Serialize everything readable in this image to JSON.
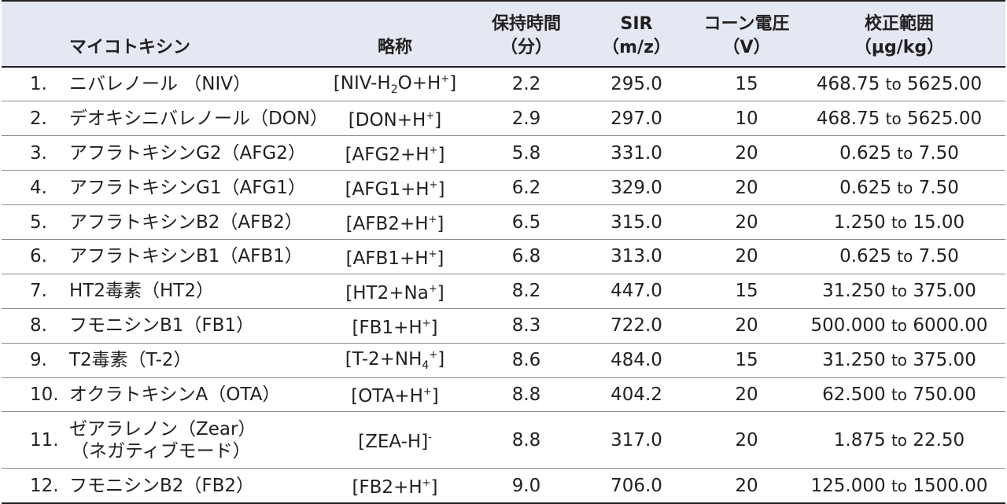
{
  "header": {
    "mycotoxin": "マイコトキシン",
    "abbr": "略称",
    "rt_line1": "保持時間",
    "rt_line2": "（分）",
    "sir_line1": "SIR",
    "sir_line2": "（m/z）",
    "cone_line1": "コーン電圧",
    "cone_line2": "（V）",
    "cal_line1": "校正範囲",
    "cal_line2": "（μg/kg）"
  },
  "rows": [
    {
      "no": "1.",
      "name": "ニバレノール （NIV）",
      "ion_pre": "[NIV-H",
      "ion_sub": "2",
      "ion_mid": "O+H",
      "ion_sup": "+",
      "ion_post": "]",
      "rt": "2.2",
      "sir": "295.0",
      "cone": "15",
      "cal_low": "468.75",
      "cal_to": "to",
      "cal_high": "5625.00"
    },
    {
      "no": "2.",
      "name": "デオキシニバレノール（DON）",
      "ion_pre": "[DON+H",
      "ion_sup": "+",
      "ion_post": "]",
      "rt": "2.9",
      "sir": "297.0",
      "cone": "10",
      "cal_low": "468.75",
      "cal_to": "to",
      "cal_high": "5625.00"
    },
    {
      "no": "3.",
      "name": "アフラトキシンG2（AFG2）",
      "ion_pre": "[AFG2+H",
      "ion_sup": "+",
      "ion_post": "]",
      "rt": "5.8",
      "sir": "331.0",
      "cone": "20",
      "cal_low": "0.625",
      "cal_to": "to",
      "cal_high": "7.50"
    },
    {
      "no": "4.",
      "name": "アフラトキシンG1（AFG1）",
      "ion_pre": "[AFG1+H",
      "ion_sup": "+",
      "ion_post": "]",
      "rt": "6.2",
      "sir": "329.0",
      "cone": "20",
      "cal_low": "0.625",
      "cal_to": "to",
      "cal_high": "7.50"
    },
    {
      "no": "5.",
      "name": "アフラトキシンB2（AFB2）",
      "ion_pre": "[AFB2+H",
      "ion_sup": "+",
      "ion_post": "]",
      "rt": "6.5",
      "sir": "315.0",
      "cone": "20",
      "cal_low": "1.250",
      "cal_to": "to",
      "cal_high": "15.00"
    },
    {
      "no": "6.",
      "name": "アフラトキシンB1（AFB1）",
      "ion_pre": "[AFB1+H",
      "ion_sup": "+",
      "ion_post": "]",
      "rt": "6.8",
      "sir": "313.0",
      "cone": "20",
      "cal_low": "0.625",
      "cal_to": "to",
      "cal_high": "7.50"
    },
    {
      "no": "7.",
      "name": "HT2毒素（HT2）",
      "ion_pre": "[HT2+Na",
      "ion_sup": "+",
      "ion_post": "]",
      "rt": "8.2",
      "sir": "447.0",
      "cone": "15",
      "cal_low": "31.250",
      "cal_to": "to",
      "cal_high": "375.00"
    },
    {
      "no": "8.",
      "name": "フモニシンB1（FB1）",
      "ion_pre": "[FB1+H",
      "ion_sup": "+",
      "ion_post": "]",
      "rt": "8.3",
      "sir": "722.0",
      "cone": "20",
      "cal_low": "500.000",
      "cal_to": "to",
      "cal_high": "6000.00"
    },
    {
      "no": "9.",
      "name": "T2毒素（T-2）",
      "ion_pre": "[T-2+NH",
      "ion_sub": "4",
      "ion_sup": "+",
      "ion_post": "]",
      "rt": "8.6",
      "sir": "484.0",
      "cone": "15",
      "cal_low": "31.250",
      "cal_to": "to",
      "cal_high": "375.00"
    },
    {
      "no": "10.",
      "name": "オクラトキシンA（OTA）",
      "ion_pre": "[OTA+H",
      "ion_sup": "+",
      "ion_post": "]",
      "rt": "8.8",
      "sir": "404.2",
      "cone": "20",
      "cal_low": "62.500",
      "cal_to": "to",
      "cal_high": "750.00"
    },
    {
      "no": "11.",
      "name": "ゼアラレノン（Zear）",
      "name2": "（ネガティブモード）",
      "ion_pre": "[ZEA-H]",
      "ion_sup": "-",
      "rt": "8.8",
      "sir": "317.0",
      "cone": "20",
      "cal_low": "1.875",
      "cal_to": "to",
      "cal_high": "22.50"
    },
    {
      "no": "12.",
      "name": "フモニシンB2（FB2）",
      "ion_pre": "[FB2+H",
      "ion_sup": "+",
      "ion_post": "]",
      "rt": "9.0",
      "sir": "706.0",
      "cone": "20",
      "cal_low": "125.000",
      "cal_to": "to",
      "cal_high": "1500.00"
    }
  ],
  "colors": {
    "header_bg": "#e4e8f3",
    "text": "#231f20",
    "rule": "#8a8c90"
  }
}
